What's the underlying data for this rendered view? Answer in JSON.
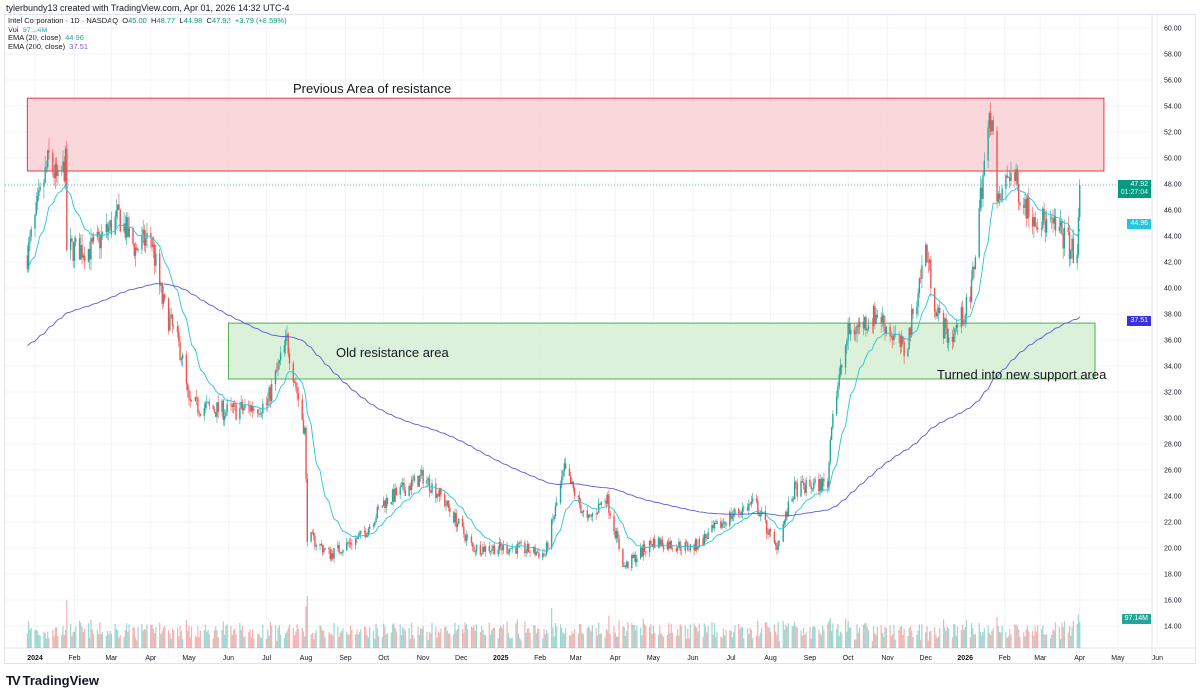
{
  "header": {
    "credit": "tylerbundy13 created with TradingView.com, Apr 01, 2026 14:32 UTC-4"
  },
  "legend": {
    "symbol": "Intel Corporation · 1D · NASDAQ",
    "o_label": "O",
    "o": "45.00",
    "h_label": "H",
    "h": "48.77",
    "l_label": "L",
    "l": "44.98",
    "c_label": "C",
    "c": "47.92",
    "change": "+3.79 (+8.59%)",
    "vol_label": "Vol",
    "vol": "97.14M",
    "ema20_label": "EMA (20, close)",
    "ema20": "44.96",
    "ema200_label": "EMA (200, close)",
    "ema200": "37.51"
  },
  "price_tags": {
    "last": "47.92",
    "countdown": "01:27:04",
    "ema20": "44.96",
    "ema200": "37.51",
    "volume": "97.14M"
  },
  "annotations": {
    "resistance": "Previous Area of resistance",
    "old_resistance": "Old resistance area",
    "support": "Turned into new support area"
  },
  "colors": {
    "up": "#26a69a",
    "down": "#ef5350",
    "ema20": "#26c6da",
    "ema200": "#5b5bd6",
    "resistance_zone": "#f8d0d3",
    "support_zone": "#d5eed3",
    "last_tag": "#089981",
    "ema200_tag": "#3b2fe0"
  },
  "footer": {
    "brand": "TradingView"
  },
  "chart_data": {
    "type": "candlestick",
    "symbol": "INTC",
    "interval": "1D",
    "ylim": [
      14,
      60
    ],
    "y_ticks": [
      "60.00",
      "58.00",
      "56.00",
      "54.00",
      "52.00",
      "50.00",
      "48.00",
      "46.00",
      "44.00",
      "42.00",
      "40.00",
      "38.00",
      "36.00",
      "34.00",
      "32.00",
      "30.00",
      "28.00",
      "26.00",
      "24.00",
      "22.00",
      "20.00",
      "18.00",
      "16.00",
      "14.00"
    ],
    "x_ticks": [
      [
        "2024-01-01",
        "2024"
      ],
      [
        "2024-02-01",
        "Feb"
      ],
      [
        "2024-03-01",
        "Mar"
      ],
      [
        "2024-04-01",
        "Apr"
      ],
      [
        "2024-05-01",
        "May"
      ],
      [
        "2024-06-01",
        "Jun"
      ],
      [
        "2024-07-01",
        "Jul"
      ],
      [
        "2024-08-01",
        "Aug"
      ],
      [
        "2024-09-01",
        "Sep"
      ],
      [
        "2024-10-01",
        "Oct"
      ],
      [
        "2024-11-01",
        "Nov"
      ],
      [
        "2024-12-01",
        "Dec"
      ],
      [
        "2025-01-01",
        "2025"
      ],
      [
        "2025-02-01",
        "Feb"
      ],
      [
        "2025-03-01",
        "Mar"
      ],
      [
        "2025-04-01",
        "Apr"
      ],
      [
        "2025-05-01",
        "May"
      ],
      [
        "2025-06-01",
        "Jun"
      ],
      [
        "2025-07-01",
        "Jul"
      ],
      [
        "2025-08-01",
        "Aug"
      ],
      [
        "2025-09-01",
        "Sep"
      ],
      [
        "2025-10-01",
        "Oct"
      ],
      [
        "2025-11-01",
        "Nov"
      ],
      [
        "2025-12-01",
        "Dec"
      ],
      [
        "2026-01-01",
        "2026"
      ],
      [
        "2026-02-01",
        "Feb"
      ],
      [
        "2026-03-01",
        "Mar"
      ],
      [
        "2026-04-01",
        "Apr"
      ],
      [
        "2026-05-01",
        "May"
      ],
      [
        "2026-06-01",
        "Jun"
      ]
    ],
    "zones": [
      {
        "name": "resistance",
        "low": 49.0,
        "high": 54.6,
        "from": "2023-12-26",
        "to": "2026-04-20"
      },
      {
        "name": "support",
        "low": 33.0,
        "high": 37.3,
        "from": "2024-06-01",
        "to": "2026-04-13"
      }
    ],
    "close_path": [
      [
        "2023-12-26",
        42.5
      ],
      [
        "2024-01-05",
        47
      ],
      [
        "2024-01-12",
        50
      ],
      [
        "2024-01-19",
        48
      ],
      [
        "2024-01-25",
        49.5
      ],
      [
        "2024-01-26",
        43
      ],
      [
        "2024-02-15",
        43
      ],
      [
        "2024-03-07",
        45.5
      ],
      [
        "2024-03-20",
        43
      ],
      [
        "2024-04-01",
        44
      ],
      [
        "2024-04-10",
        39
      ],
      [
        "2024-04-25",
        35
      ],
      [
        "2024-05-01",
        31
      ],
      [
        "2024-06-01",
        30.5
      ],
      [
        "2024-07-01",
        31
      ],
      [
        "2024-07-17",
        36
      ],
      [
        "2024-07-31",
        29
      ],
      [
        "2024-08-02",
        21
      ],
      [
        "2024-08-20",
        19.5
      ],
      [
        "2024-09-15",
        21
      ],
      [
        "2024-10-01",
        23.5
      ],
      [
        "2024-11-01",
        25.5
      ],
      [
        "2024-11-15",
        24
      ],
      [
        "2024-12-10",
        20
      ],
      [
        "2025-01-15",
        20
      ],
      [
        "2025-02-05",
        19.5
      ],
      [
        "2025-02-20",
        26
      ],
      [
        "2025-03-10",
        22
      ],
      [
        "2025-03-25",
        24
      ],
      [
        "2025-04-08",
        18.5
      ],
      [
        "2025-05-01",
        20.5
      ],
      [
        "2025-06-01",
        20
      ],
      [
        "2025-07-01",
        22.5
      ],
      [
        "2025-07-20",
        23.5
      ],
      [
        "2025-08-05",
        20
      ],
      [
        "2025-08-20",
        24.5
      ],
      [
        "2025-09-15",
        25
      ],
      [
        "2025-09-18",
        30
      ],
      [
        "2025-10-01",
        36.5
      ],
      [
        "2025-10-24",
        38
      ],
      [
        "2025-11-15",
        35
      ],
      [
        "2025-12-01",
        43
      ],
      [
        "2025-12-10",
        38
      ],
      [
        "2025-12-20",
        36
      ],
      [
        "2026-01-05",
        39
      ],
      [
        "2026-01-14",
        48
      ],
      [
        "2026-01-22",
        54
      ],
      [
        "2026-01-26",
        46
      ],
      [
        "2026-02-05",
        49
      ],
      [
        "2026-02-20",
        46
      ],
      [
        "2026-03-05",
        45
      ],
      [
        "2026-03-20",
        44
      ],
      [
        "2026-03-30",
        42
      ],
      [
        "2026-04-01",
        47.92
      ]
    ],
    "ema_periods": [
      20,
      200
    ]
  }
}
